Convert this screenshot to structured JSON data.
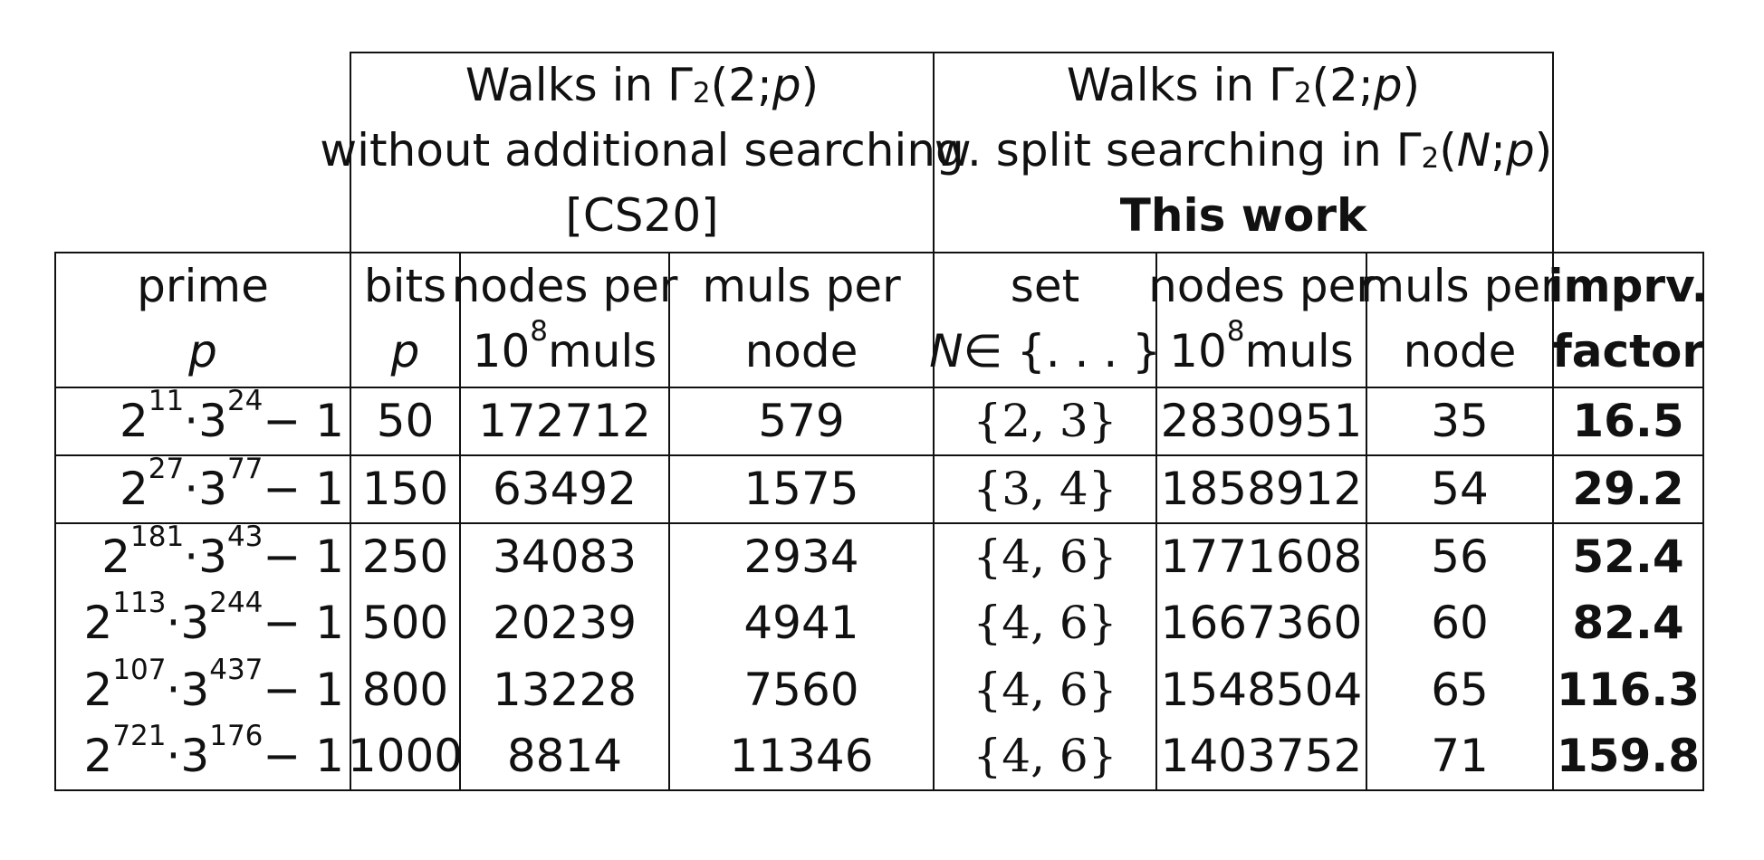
{
  "groups": {
    "cs20": {
      "line1_prefix": "Walks in Γ",
      "line1_sub": "2",
      "line1_args": "(2; ",
      "line1_p": "p",
      "line1_close": ")",
      "line2": "without additional searching",
      "line3": "[CS20]"
    },
    "this_work": {
      "line1_prefix": "Walks in Γ",
      "line1_sub": "2",
      "line1_args": "(2; ",
      "line1_p": "p",
      "line1_close": ")",
      "line2_prefix": "w. split searching in Γ",
      "line2_sub": "2",
      "line2_open": "(",
      "line2_N": "N",
      "line2_sep": "; ",
      "line2_p": "p",
      "line2_close": ")",
      "line3": "This work"
    }
  },
  "columns": {
    "prime": {
      "top": "prime",
      "bottom": "p"
    },
    "bits": {
      "top": "bits",
      "bottom": "p"
    },
    "nodes_cs20": {
      "top": "nodes per",
      "bottom_base": "10",
      "bottom_exp": "8",
      "bottom_rest": " muls"
    },
    "muls_cs20": {
      "top": "muls per",
      "bottom": "node"
    },
    "set": {
      "top": "set",
      "bottom_N": "N",
      "bottom_rest": " ∈ {. . . }"
    },
    "nodes_tw": {
      "top": "nodes per",
      "bottom_base": "10",
      "bottom_exp": "8",
      "bottom_rest": " muls"
    },
    "muls_tw": {
      "top": "muls per",
      "bottom": "node"
    },
    "imprv": {
      "top": "imprv.",
      "bottom": "factor"
    }
  },
  "rows": [
    {
      "e2": "11",
      "e3": "24",
      "bits": "50",
      "nodes_cs20": "172712",
      "muls_cs20": "579",
      "set": "{2, 3}",
      "nodes_tw": "2830951",
      "muls_tw": "35",
      "imprv": "16.5"
    },
    {
      "e2": "27",
      "e3": "77",
      "bits": "150",
      "nodes_cs20": "63492",
      "muls_cs20": "1575",
      "set": "{3, 4}",
      "nodes_tw": "1858912",
      "muls_tw": "54",
      "imprv": "29.2"
    },
    {
      "e2": "181",
      "e3": "43",
      "bits": "250",
      "nodes_cs20": "34083",
      "muls_cs20": "2934",
      "set": "{4, 6}",
      "nodes_tw": "1771608",
      "muls_tw": "56",
      "imprv": "52.4"
    },
    {
      "e2": "113",
      "e3": "244",
      "bits": "500",
      "nodes_cs20": "20239",
      "muls_cs20": "4941",
      "set": "{4, 6}",
      "nodes_tw": "1667360",
      "muls_tw": "60",
      "imprv": "82.4"
    },
    {
      "e2": "107",
      "e3": "437",
      "bits": "800",
      "nodes_cs20": "13228",
      "muls_cs20": "7560",
      "set": "{4, 6}",
      "nodes_tw": "1548504",
      "muls_tw": "65",
      "imprv": "116.3"
    },
    {
      "e2": "721",
      "e3": "176",
      "bits": "1000",
      "nodes_cs20": "8814",
      "muls_cs20": "11346",
      "set": "{4, 6}",
      "nodes_tw": "1403752",
      "muls_tw": "71",
      "imprv": "159.8"
    }
  ],
  "prime_parts": {
    "base2": "2",
    "dot": " · ",
    "base3": "3",
    "minus": " − 1"
  }
}
